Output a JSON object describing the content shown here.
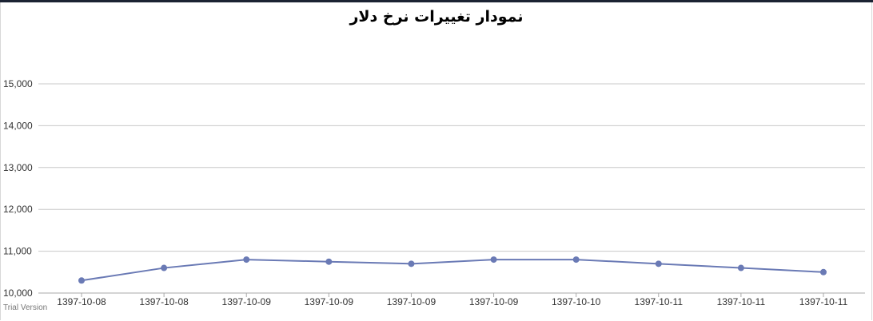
{
  "chart_data": {
    "type": "line",
    "title": "نمودار تغییرات نرخ دلار",
    "xlabel": "",
    "ylabel": "",
    "categories": [
      "1397-10-08",
      "1397-10-08",
      "1397-10-09",
      "1397-10-09",
      "1397-10-09",
      "1397-10-09",
      "1397-10-10",
      "1397-10-11",
      "1397-10-11",
      "1397-10-11"
    ],
    "series": [
      {
        "values": [
          10300,
          10600,
          10800,
          10750,
          10700,
          10800,
          10800,
          10700,
          10600,
          10500
        ],
        "color": "#6a7ab5"
      }
    ],
    "ylim": [
      10000,
      15000
    ],
    "yticks": [
      10000,
      11000,
      12000,
      13000,
      14000,
      15000
    ],
    "ytick_labels": [
      "10,000",
      "11,000",
      "12,000",
      "13,000",
      "14,000",
      "15,000"
    ],
    "grid": true,
    "legend": "none",
    "gridline_color": "#c8c8c8"
  },
  "watermark": "Trial Version",
  "colors": {
    "top_strip": "#1b2333",
    "line": "#6a7ab5"
  }
}
